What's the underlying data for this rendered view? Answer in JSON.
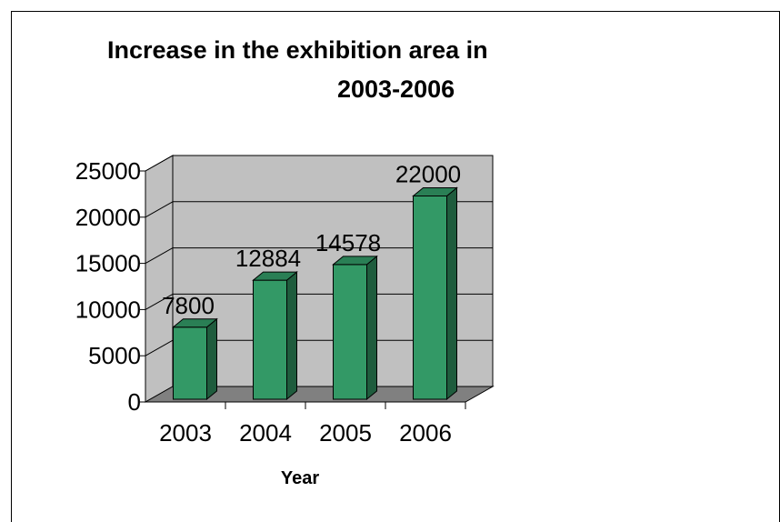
{
  "chart_data": {
    "type": "bar",
    "title_line1": "Increase in the exhibition area in",
    "title_line2": "2003-2006",
    "xlabel": "Year",
    "ylabel": "",
    "categories": [
      "2003",
      "2004",
      "2005",
      "2006"
    ],
    "values": [
      7800,
      12884,
      14578,
      22000
    ],
    "data_labels": [
      "7800",
      "12884",
      "14578",
      "22000"
    ],
    "ylim": [
      0,
      25000
    ],
    "yticks": [
      0,
      5000,
      10000,
      15000,
      20000,
      25000
    ],
    "grid": true,
    "style": "3d-column",
    "colors": {
      "bar_front": "#339966",
      "bar_side": "#1f5c3d",
      "bar_top": "#2a7f55",
      "back_wall": "#c0c0c0",
      "side_wall": "#c0c0c0",
      "floor": "#808080",
      "gridline": "#000000"
    }
  }
}
